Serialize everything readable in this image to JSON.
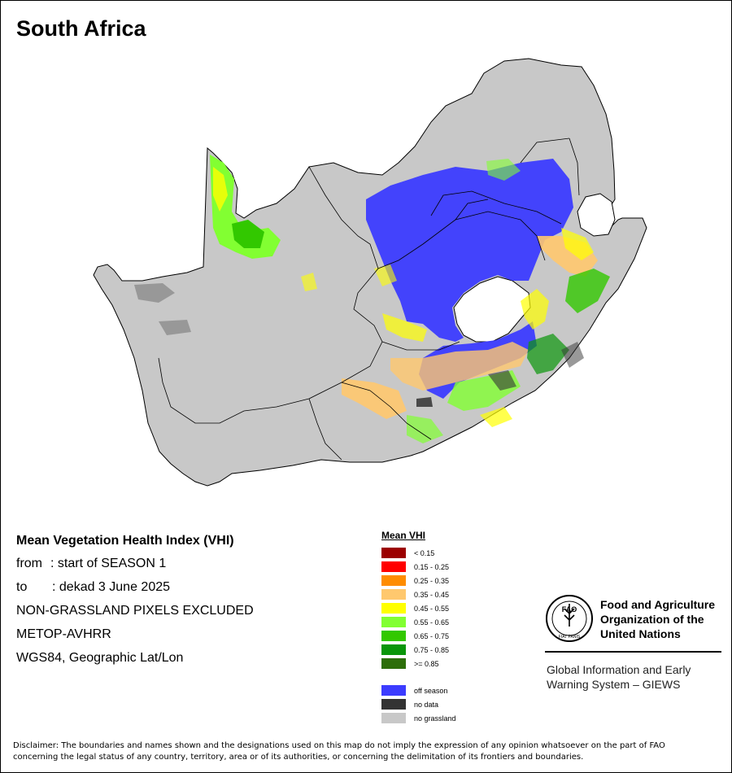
{
  "title": "South Africa",
  "info": {
    "heading": "Mean Vegetation Health Index (VHI)",
    "from_label": "from",
    "from_value": ": start of SEASON 1",
    "to_label": "to",
    "to_value": ": dekad 3 June 2025",
    "line3": "NON-GRASSLAND PIXELS EXCLUDED",
    "line4": "METOP-AVHRR",
    "line5": "WGS84, Geographic Lat/Lon"
  },
  "legend": {
    "title": "Mean VHI",
    "classes": [
      {
        "label": "< 0.15",
        "color": "#9b0000"
      },
      {
        "label": "0.15 - 0.25",
        "color": "#ff0000"
      },
      {
        "label": "0.25 - 0.35",
        "color": "#ff8c00"
      },
      {
        "label": "0.35 - 0.45",
        "color": "#ffc86e"
      },
      {
        "label": "0.45 - 0.55",
        "color": "#ffff00"
      },
      {
        "label": "0.55 - 0.65",
        "color": "#82ff32"
      },
      {
        "label": "0.65 - 0.75",
        "color": "#32c800"
      },
      {
        "label": "0.75 - 0.85",
        "color": "#0a960a"
      },
      {
        "label": ">= 0.85",
        "color": "#2d6e0a"
      }
    ],
    "extra": [
      {
        "label": "off season",
        "color": "#3c3cff"
      },
      {
        "label": "no data",
        "color": "#333333"
      },
      {
        "label": "no grassland",
        "color": "#c8c8c8"
      }
    ]
  },
  "fao": {
    "org_line1": "Food and Agriculture",
    "org_line2": "Organization of the",
    "org_line3": "United Nations",
    "logo_letters": "FAO",
    "logo_motto": "FIAT PANIS",
    "giews_line1": "Global Information and Early",
    "giews_line2": "Warning System – GIEWS"
  },
  "disclaimer_line1": "Disclaimer: The boundaries and names shown and the designations used on this map do not imply the expression of any opinion whatsoever on the part of FAO",
  "disclaimer_line2": "concerning the legal status of any country, territory, area or of its authorities, or concerning the delimitation of its frontiers and boundaries."
}
